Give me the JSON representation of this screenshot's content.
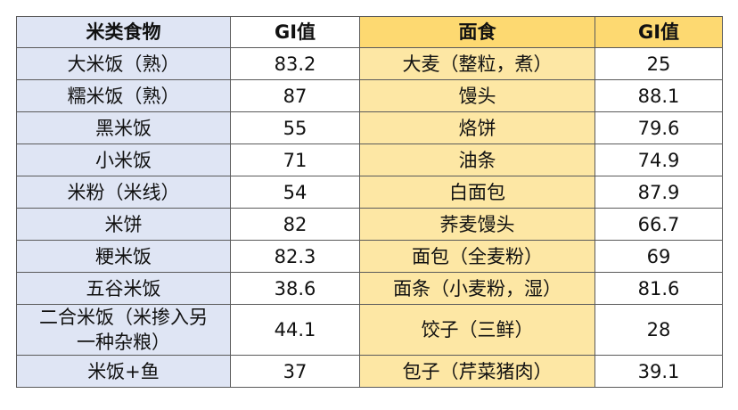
{
  "table": {
    "header": [
      "米类食物",
      "GI值",
      "面食",
      "GI值"
    ],
    "rows": [
      [
        "大米饭（熟）",
        "83.2",
        "大麦（整粒，煮）",
        "25"
      ],
      [
        "糯米饭（熟）",
        "87",
        "馒头",
        "88.1"
      ],
      [
        "黑米饭",
        "55",
        "烙饼",
        "79.6"
      ],
      [
        "小米饭",
        "71",
        "油条",
        "74.9"
      ],
      [
        "米粉（米线）",
        "54",
        "白面包",
        "87.9"
      ],
      [
        "米饼",
        "82",
        "荞麦馒头",
        "66.7"
      ],
      [
        "粳米饭",
        "82.3",
        "面包（全麦粉）",
        "69"
      ],
      [
        "五谷米饭",
        "38.6",
        "面条（小麦粉，湿）",
        "81.6"
      ],
      [
        "二合米饭（米掺入另一种杂粮）",
        "44.1",
        "饺子（三鲜）",
        "28"
      ],
      [
        "米饭+鱼",
        "37",
        "包子（芹菜猪肉）",
        "39.1"
      ]
    ]
  }
}
